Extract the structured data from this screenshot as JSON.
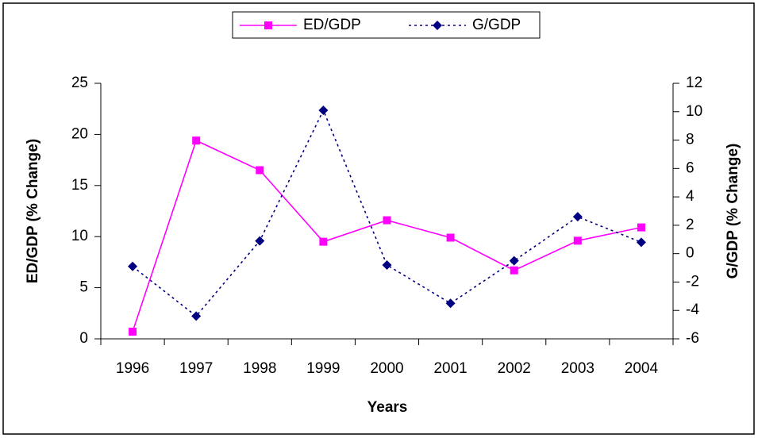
{
  "chart_data": {
    "type": "line",
    "x_label": "Years",
    "y_label": "ED/GDP (% Change)",
    "y2_label": "G/GDP (% Change)",
    "categories": [
      "1996",
      "1997",
      "1998",
      "1999",
      "2000",
      "2001",
      "2002",
      "2003",
      "2004"
    ],
    "series": [
      {
        "name": "ED/GDP",
        "color": "#ff00ff",
        "marker": "square",
        "dash": "solid",
        "values": [
          0.7,
          19.4,
          16.5,
          9.5,
          11.6,
          9.9,
          6.7,
          9.6,
          10.9
        ]
      },
      {
        "name": "G/GDP",
        "color": "#000080",
        "marker": "diamond",
        "dash": "dotted",
        "axis": "y2",
        "values": [
          -0.9,
          -4.4,
          0.9,
          10.1,
          -0.8,
          -3.5,
          -0.5,
          2.6,
          0.8
        ]
      }
    ],
    "ylim": [
      0,
      25
    ],
    "yticks": [
      0,
      5,
      10,
      15,
      20,
      25
    ],
    "y2lim": [
      -6,
      12
    ],
    "y2ticks": [
      -6,
      -4,
      -2,
      0,
      2,
      4,
      6,
      8,
      10,
      12
    ],
    "grid": false,
    "legend": "top"
  }
}
